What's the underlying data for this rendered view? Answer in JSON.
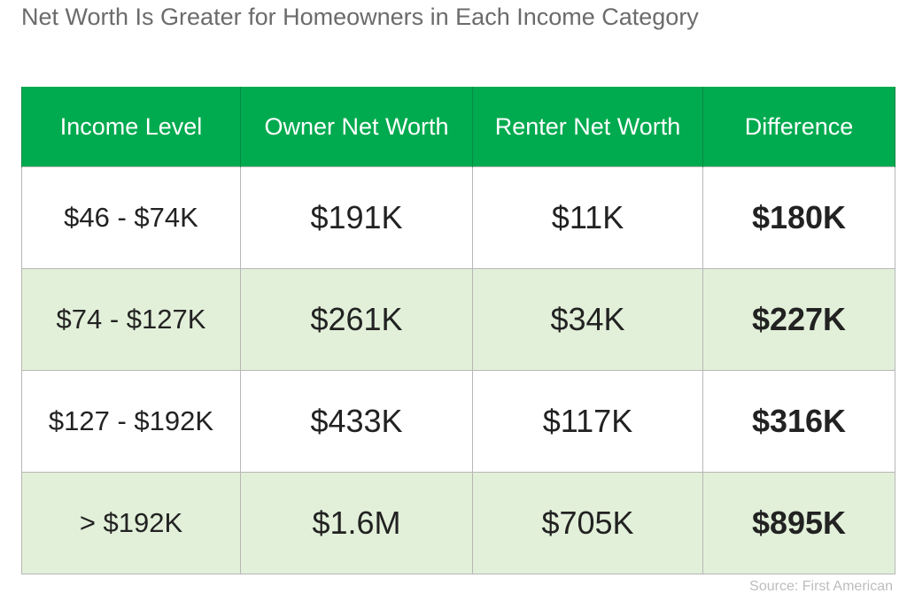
{
  "title": "Net Worth Is Greater for Homeowners in Each Income Category",
  "table": {
    "header": [
      "Income Level",
      "Owner Net Worth",
      "Renter Net Worth",
      "Difference"
    ],
    "rows": [
      [
        "$46 - $74K",
        "$191K",
        "$11K",
        "$180K"
      ],
      [
        "$74 - $127K",
        "$261K",
        "$34K",
        "$227K"
      ],
      [
        "$127 - $192K",
        "$433K",
        "$117K",
        "$316K"
      ],
      [
        "> $192K",
        "$1.6M",
        "$705K",
        "$895K"
      ]
    ]
  },
  "source": "Source: First American"
}
